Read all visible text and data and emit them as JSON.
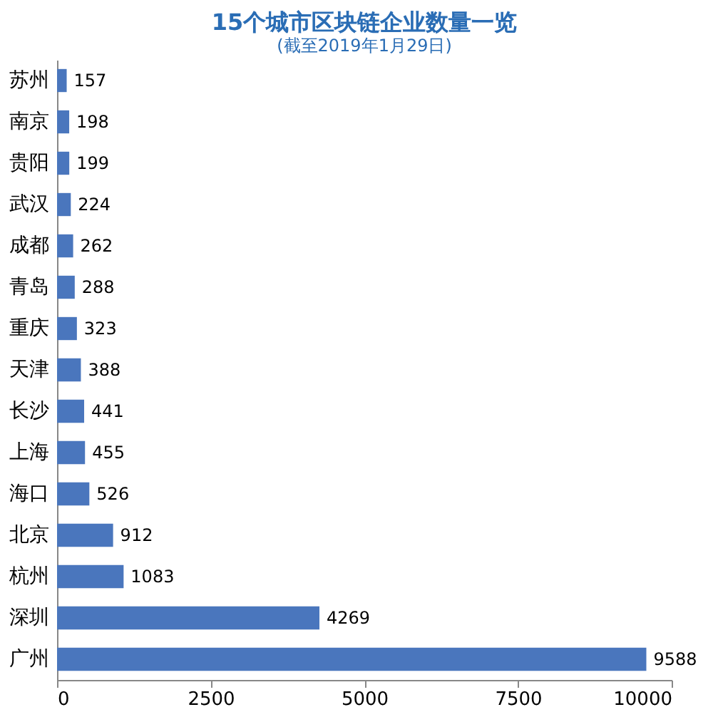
{
  "chart_data": {
    "type": "bar",
    "orientation": "horizontal",
    "title": "15个城市区块链企业数量一览",
    "subtitle": "(截至2019年1月29日)",
    "categories": [
      "苏州",
      "南京",
      "贵阳",
      "武汉",
      "成都",
      "青岛",
      "重庆",
      "天津",
      "长沙",
      "上海",
      "海口",
      "北京",
      "杭州",
      "深圳",
      "广州"
    ],
    "values": [
      157,
      198,
      199,
      224,
      262,
      288,
      323,
      388,
      441,
      455,
      526,
      912,
      1083,
      4269,
      9588
    ],
    "color": "#4a76bd",
    "xlim": [
      0,
      10000
    ],
    "xticks": [
      0,
      2500,
      5000,
      7500,
      10000
    ],
    "grid": false,
    "data_labels": true
  }
}
